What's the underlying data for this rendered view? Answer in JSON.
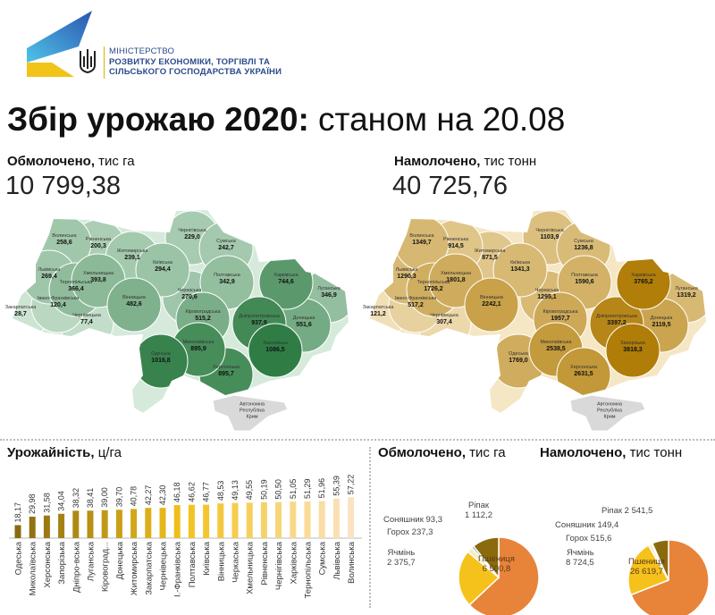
{
  "header": {
    "ministry_line1": "МІНІСТЕРСТВО",
    "ministry_line2": "РОЗВИТКУ ЕКОНОМІКИ, ТОРГІВЛІ ТА",
    "ministry_line3": "СІЛЬСЬКОГО ГОСПОДАРСТВА УКРАЇНИ",
    "title_bold": "Збір урожаю 2020:",
    "title_regular": " станом на 20.08"
  },
  "colors": {
    "green_dark": "#2f7d45",
    "green_light": "#cfe5d3",
    "gold_dark": "#b8860b",
    "gold_light": "#f3e2bd",
    "crimea": "#d9d9d9"
  },
  "threshed": {
    "label_bold": "Обмолочено,",
    "label_unit": " тис га",
    "total": "10 799,38"
  },
  "harvested": {
    "label_bold": "Намолочено,",
    "label_unit": " тис тонн",
    "total": "40 725,76"
  },
  "crimea_label": "Автономна Республіка Крим",
  "regions": [
    {
      "name": "Волинська",
      "area": "258,6",
      "harvest": "1349,7"
    },
    {
      "name": "Рівненська",
      "area": "200,3",
      "harvest": "914,5"
    },
    {
      "name": "Житомирська",
      "area": "239,1",
      "harvest": "871,5"
    },
    {
      "name": "Чернігівська",
      "area": "229,0",
      "harvest": "1103,9"
    },
    {
      "name": "Сумська",
      "area": "242,7",
      "harvest": "1236,8"
    },
    {
      "name": "Київська",
      "area": "294,4",
      "harvest": "1341,3"
    },
    {
      "name": "Львівська",
      "area": "269,4",
      "harvest": "1290,3"
    },
    {
      "name": "Хмельницька",
      "area": "393,8",
      "harvest": "1801,8"
    },
    {
      "name": "Тернопільська",
      "area": "366,4",
      "harvest": "1726,2"
    },
    {
      "name": "Полтавська",
      "area": "342,9",
      "harvest": "1590,6"
    },
    {
      "name": "Харківська",
      "area": "744,6",
      "harvest": "3765,2"
    },
    {
      "name": "Луганська",
      "area": "346,9",
      "harvest": "1319,2"
    },
    {
      "name": "Вінницька",
      "area": "482,6",
      "harvest": "2242,1"
    },
    {
      "name": "Черкаська",
      "area": "270,6",
      "harvest": "1295,1"
    },
    {
      "name": "Івано-Франківська",
      "area": "120,4",
      "harvest": "517,2"
    },
    {
      "name": "Закарпатська",
      "area": "28,7",
      "harvest": "121,2"
    },
    {
      "name": "Чернівецька",
      "area": "77,4",
      "harvest": "307,4"
    },
    {
      "name": "Кіровоградська",
      "area": "515,2",
      "harvest": "1957,7"
    },
    {
      "name": "Дніпропетровська",
      "area": "937,9",
      "harvest": "3397,2"
    },
    {
      "name": "Донецька",
      "area": "551,6",
      "harvest": "2119,5"
    },
    {
      "name": "Миколаївська",
      "area": "895,9",
      "harvest": "2538,5"
    },
    {
      "name": "Запорізька",
      "area": "1086,5",
      "harvest": "3818,3"
    },
    {
      "name": "Одеська",
      "area": "1016,8",
      "harvest": "1769,0"
    },
    {
      "name": "Херсонська",
      "area": "895,7",
      "harvest": "2631,5"
    }
  ],
  "yield_section": {
    "label_bold": "Урожайність,",
    "label_unit": " ц/га"
  },
  "pie_section_area": {
    "label_bold": "Обмолочено,",
    "label_unit": " тис га"
  },
  "pie_section_harvest": {
    "label_bold": "Намолочено,",
    "label_unit": " тис тонн"
  },
  "chart_data": [
    {
      "type": "bar",
      "title": "Урожайність, ц/га",
      "categories": [
        "Одеська",
        "Миколаївська",
        "Херсонська",
        "Запорізька",
        "Дніпро-вська",
        "Луганська",
        "Кіровоград...",
        "Донецька",
        "Житомирська",
        "Закарпатська",
        "Чернівецька",
        "І.-Франківська",
        "Полтавська",
        "Київська",
        "Вінницька",
        "Черкаська",
        "Хмельницька",
        "Рівненська",
        "Чернігівська",
        "Харківська",
        "Тернопільська",
        "Сумська",
        "Львівська",
        "Волинська"
      ],
      "values": [
        18.17,
        29.98,
        31.58,
        34.04,
        38.32,
        38.41,
        39.0,
        39.7,
        40.78,
        42.27,
        42.3,
        46.18,
        46.62,
        46.77,
        48.53,
        49.13,
        49.55,
        50.19,
        50.5,
        51.05,
        51.29,
        51.96,
        55.39,
        57.22
      ],
      "value_labels": [
        "18,17",
        "29,98",
        "31,58",
        "34,04",
        "38,32",
        "38,41",
        "39,00",
        "39,70",
        "40,78",
        "42,27",
        "42,30",
        "46,18",
        "46,62",
        "46,77",
        "48,53",
        "49,13",
        "49,55",
        "50,19",
        "50,50",
        "51,05",
        "51,29",
        "51,96",
        "55,39",
        "57,22"
      ],
      "ylim": [
        0,
        60
      ]
    },
    {
      "type": "pie",
      "title": "Обмолочено, тис га",
      "slices": [
        {
          "name": "Пшениця",
          "value": 6500.8,
          "label": "6 500,8",
          "color": "#e8833a"
        },
        {
          "name": "Ячмінь",
          "value": 2375.7,
          "label": "2 375,7",
          "color": "#f5c21b"
        },
        {
          "name": "Горох",
          "value": 237.3,
          "label": "237,3",
          "color": "#f3ecc8"
        },
        {
          "name": "Соняшник",
          "value": 93.3,
          "label": "93,3",
          "color": "#6aab6a"
        },
        {
          "name": "Ріпак",
          "value": 1112.2,
          "label": "1 112,2",
          "color": "#8a6a0c"
        }
      ]
    },
    {
      "type": "pie",
      "title": "Намолочено, тис тонн",
      "slices": [
        {
          "name": "Пшениця",
          "value": 26619.7,
          "label": "26 619,7",
          "color": "#e8833a"
        },
        {
          "name": "Ячмінь",
          "value": 8724.5,
          "label": "8 724,5",
          "color": "#f5c21b"
        },
        {
          "name": "Горох",
          "value": 515.6,
          "label": "515,6",
          "color": "#f3ecc8"
        },
        {
          "name": "Соняшник",
          "value": 149.4,
          "label": "149,4",
          "color": "#8fb0c8"
        },
        {
          "name": "Ріпак",
          "value": 2541.5,
          "label": "2 541,5",
          "color": "#8a6a0c"
        }
      ]
    }
  ]
}
